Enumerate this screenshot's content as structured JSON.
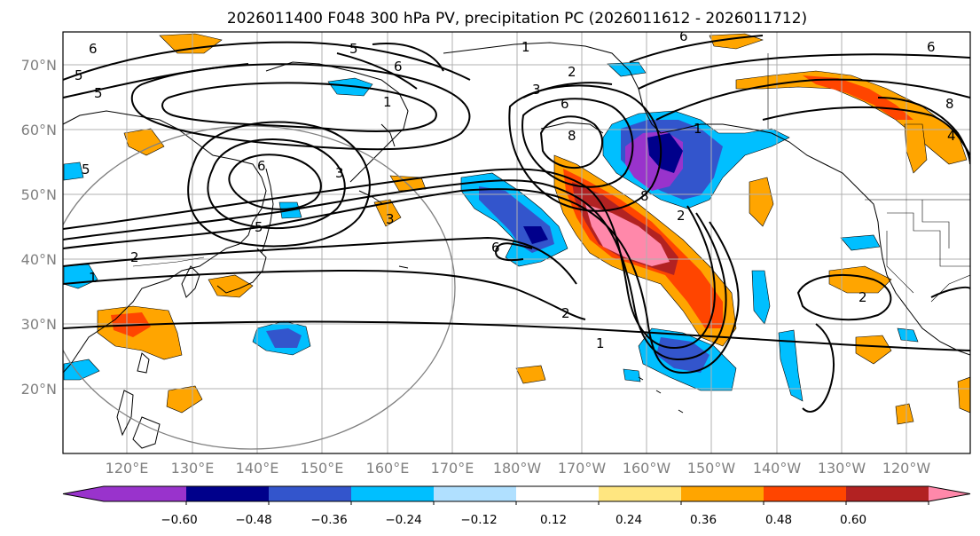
{
  "title": "2026011400 F048 300 hPa PV, precipitation PC (2026011612 - 2026011712)",
  "lat_labels": [
    "70°N",
    "60°N",
    "50°N",
    "40°N",
    "30°N",
    "20°N"
  ],
  "lon_labels": [
    "120°E",
    "130°E",
    "140°E",
    "150°E",
    "160°E",
    "170°E",
    "180°W",
    "170°W",
    "160°W",
    "150°W",
    "140°W",
    "130°W",
    "120°W"
  ],
  "colorbar": {
    "ticks": [
      "−0.60",
      "−0.48",
      "−0.36",
      "−0.24",
      "−0.12",
      "0.12",
      "0.24",
      "0.36",
      "0.48",
      "0.60"
    ],
    "colors": [
      "#9933cc",
      "#00008b",
      "#3355cc",
      "#00bfff",
      "#b0e0ff",
      "#ffffff",
      "#ffe680",
      "#ffa500",
      "#ff4500",
      "#b22222",
      "#ff88aa"
    ]
  },
  "contour_labels": [
    "6",
    "5",
    "5",
    "5",
    "6",
    "1",
    "3",
    "2",
    "3",
    "1",
    "6",
    "8",
    "6",
    "5",
    "5",
    "6",
    "8",
    "2",
    "1",
    "3",
    "1",
    "6",
    "2",
    "2",
    "1",
    "2",
    "8",
    "4",
    "6"
  ]
}
